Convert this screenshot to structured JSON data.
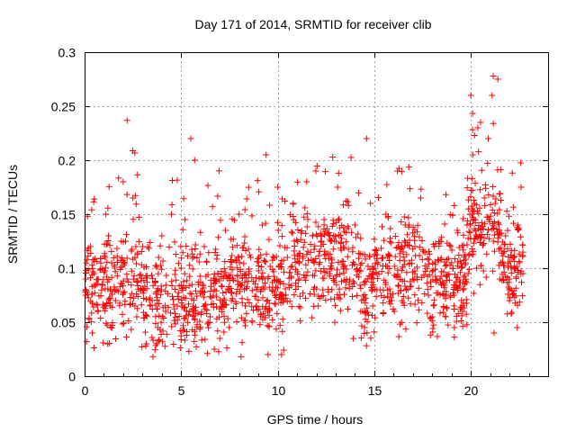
{
  "chart_data": {
    "type": "scatter",
    "title": "Day 171 of 2014, SRMTID for receiver clib",
    "xlabel": "GPS time / hours",
    "ylabel": "SRMTID / TECUs",
    "xlim": [
      0,
      24
    ],
    "ylim": [
      0,
      0.3
    ],
    "x_ticks": [
      0,
      5,
      10,
      15,
      20
    ],
    "x_tick_labels": [
      "0",
      "5",
      "10",
      "15",
      "20"
    ],
    "y_ticks": [
      0,
      0.05,
      0.1,
      0.15,
      0.2,
      0.25,
      0.3
    ],
    "y_tick_labels": [
      "0",
      "0.05",
      "0.1",
      "0.15",
      "0.2",
      "0.25",
      "0.3"
    ],
    "grid": true,
    "marker": "+",
    "marker_color": "#ff0000",
    "series": [
      {
        "name": "SRMTID",
        "x_range": [
          0.0,
          22.7
        ],
        "note": "Dense scatter of ~1700 points; values below are representative samples",
        "points": [
          [
            0.05,
            0.075
          ],
          [
            0.1,
            0.032
          ],
          [
            0.15,
            0.148
          ],
          [
            0.3,
            0.12
          ],
          [
            0.4,
            0.04
          ],
          [
            0.5,
            0.095
          ],
          [
            0.7,
            0.06
          ],
          [
            0.9,
            0.085
          ],
          [
            1.1,
            0.15
          ],
          [
            1.2,
            0.03
          ],
          [
            1.4,
            0.105
          ],
          [
            1.6,
            0.07
          ],
          [
            1.9,
            0.125
          ],
          [
            2.0,
            0.18
          ],
          [
            2.2,
            0.09
          ],
          [
            2.5,
            0.165
          ],
          [
            2.7,
            0.055
          ],
          [
            3.0,
            0.12
          ],
          [
            3.2,
            0.03
          ],
          [
            3.5,
            0.07
          ],
          [
            3.8,
            0.045
          ],
          [
            4.0,
            0.13
          ],
          [
            4.2,
            0.06
          ],
          [
            4.5,
            0.15
          ],
          [
            4.8,
            0.065
          ],
          [
            5.0,
            0.1
          ],
          [
            5.2,
            0.145
          ],
          [
            5.5,
            0.22
          ],
          [
            5.7,
            0.2
          ],
          [
            5.9,
            0.085
          ],
          [
            6.2,
            0.12
          ],
          [
            6.5,
            0.055
          ],
          [
            6.8,
            0.09
          ],
          [
            7.0,
            0.035
          ],
          [
            7.3,
            0.135
          ],
          [
            7.6,
            0.07
          ],
          [
            8.0,
            0.15
          ],
          [
            8.3,
            0.095
          ],
          [
            8.6,
            0.11
          ],
          [
            8.9,
            0.065
          ],
          [
            9.2,
            0.14
          ],
          [
            9.4,
            0.205
          ],
          [
            9.5,
            0.02
          ],
          [
            9.7,
            0.08
          ],
          [
            10.0,
            0.175
          ],
          [
            10.2,
            0.02
          ],
          [
            10.5,
            0.11
          ],
          [
            10.8,
            0.16
          ],
          [
            11.1,
            0.09
          ],
          [
            11.5,
            0.18
          ],
          [
            11.8,
            0.13
          ],
          [
            12.1,
            0.065
          ],
          [
            12.4,
            0.145
          ],
          [
            12.8,
            0.1
          ],
          [
            13.1,
            0.175
          ],
          [
            13.4,
            0.12
          ],
          [
            13.7,
            0.085
          ],
          [
            14.0,
            0.14
          ],
          [
            14.3,
            0.06
          ],
          [
            14.5,
            0.045
          ],
          [
            14.6,
            0.22
          ],
          [
            14.8,
            0.16
          ],
          [
            15.0,
            0.1
          ],
          [
            15.3,
            0.08
          ],
          [
            15.6,
            0.15
          ],
          [
            15.9,
            0.07
          ],
          [
            16.2,
            0.19
          ],
          [
            16.5,
            0.115
          ],
          [
            16.8,
            0.14
          ],
          [
            17.1,
            0.095
          ],
          [
            17.4,
            0.165
          ],
          [
            17.8,
            0.075
          ],
          [
            18.1,
            0.12
          ],
          [
            18.4,
            0.09
          ],
          [
            18.7,
            0.055
          ],
          [
            19.0,
            0.105
          ],
          [
            19.3,
            0.135
          ],
          [
            19.6,
            0.08
          ],
          [
            19.8,
            0.14
          ],
          [
            20.0,
            0.26
          ],
          [
            20.1,
            0.205
          ],
          [
            20.3,
            0.1
          ],
          [
            20.5,
            0.235
          ],
          [
            20.7,
            0.165
          ],
          [
            20.9,
            0.22
          ],
          [
            21.1,
            0.26
          ],
          [
            21.2,
            0.04
          ],
          [
            21.4,
            0.275
          ],
          [
            21.5,
            0.09
          ],
          [
            21.8,
            0.13
          ],
          [
            22.0,
            0.07
          ],
          [
            22.2,
            0.11
          ],
          [
            22.4,
            0.045
          ],
          [
            22.6,
            0.175
          ],
          [
            22.7,
            0.095
          ]
        ]
      }
    ]
  }
}
